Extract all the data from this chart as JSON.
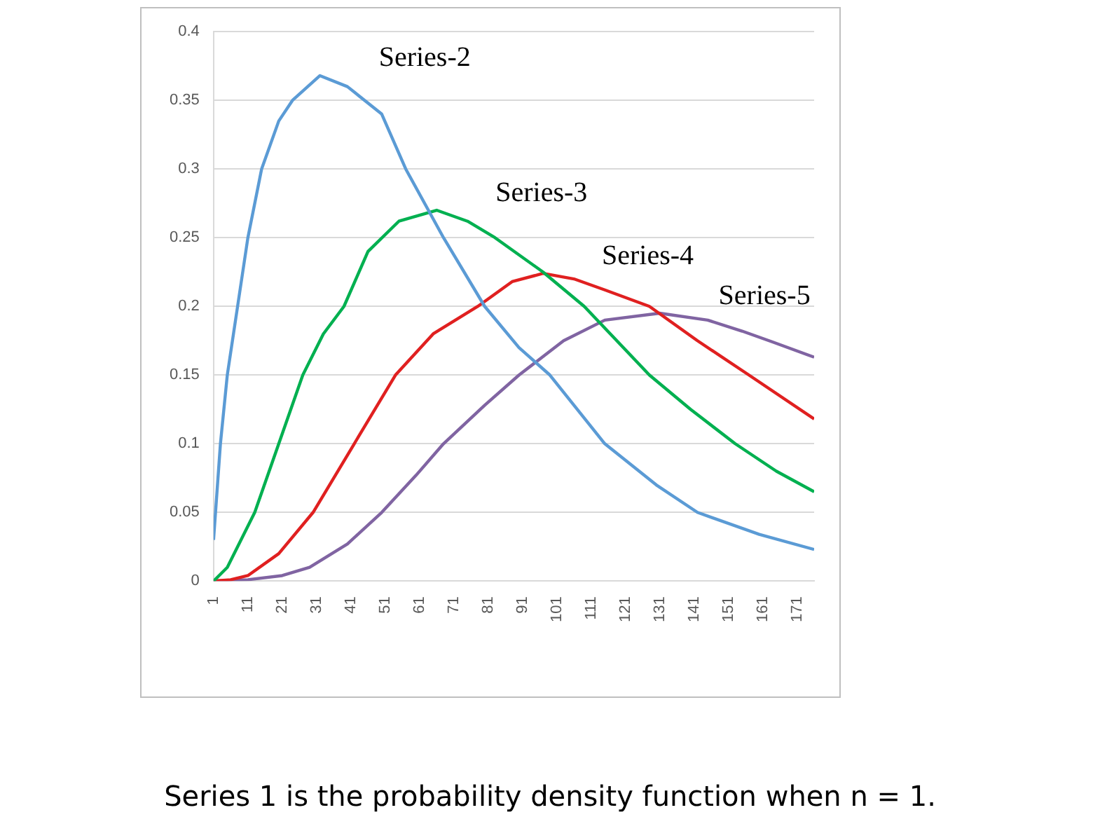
{
  "chart_data": {
    "type": "line",
    "annotations": [
      "Series 1 is the probability density function when n = 1."
    ],
    "xlim": [
      1,
      176
    ],
    "xticks": [
      1,
      11,
      21,
      31,
      41,
      51,
      61,
      71,
      81,
      91,
      101,
      111,
      121,
      131,
      141,
      151,
      161,
      171
    ],
    "ylim": [
      0,
      0.4
    ],
    "yticks": [
      0,
      0.05,
      0.1,
      0.15,
      0.2,
      0.25,
      0.3,
      0.35,
      0.4
    ],
    "grid": "y",
    "legend": false,
    "marker": "none",
    "line_style": "solid",
    "series": [
      {
        "name": "Series-2",
        "color": "#5b9bd5",
        "x": [
          1,
          3,
          5,
          8,
          11,
          15,
          20,
          24,
          32,
          40,
          50,
          57,
          68,
          80,
          90,
          99,
          115,
          130,
          142,
          160,
          176
        ],
        "values": [
          0.03,
          0.1,
          0.15,
          0.2,
          0.25,
          0.3,
          0.335,
          0.35,
          0.368,
          0.36,
          0.34,
          0.3,
          0.25,
          0.2,
          0.17,
          0.15,
          0.1,
          0.07,
          0.05,
          0.034,
          0.023
        ]
      },
      {
        "name": "Series-3",
        "color": "#00b050",
        "x": [
          1,
          5,
          9,
          13,
          20,
          27,
          33,
          39,
          46,
          55,
          66,
          75,
          83,
          97,
          109,
          128,
          140,
          153,
          165,
          176
        ],
        "values": [
          0,
          0.01,
          0.03,
          0.05,
          0.1,
          0.15,
          0.18,
          0.2,
          0.24,
          0.262,
          0.27,
          0.262,
          0.25,
          0.225,
          0.2,
          0.15,
          0.125,
          0.1,
          0.08,
          0.065
        ]
      },
      {
        "name": "Series-4",
        "color": "#e02020",
        "x": [
          1,
          6,
          11,
          20,
          30,
          42,
          54,
          65,
          78,
          88,
          97,
          106,
          115,
          128,
          142,
          157,
          176
        ],
        "values": [
          0,
          0.001,
          0.004,
          0.02,
          0.05,
          0.1,
          0.15,
          0.18,
          0.2,
          0.218,
          0.224,
          0.22,
          0.212,
          0.2,
          0.175,
          0.15,
          0.118
        ]
      },
      {
        "name": "Series-5",
        "color": "#8064a2",
        "x": [
          1,
          11,
          21,
          29,
          40,
          50,
          60,
          68,
          80,
          90,
          103,
          115,
          131,
          145,
          155,
          164,
          176
        ],
        "values": [
          0,
          0.001,
          0.004,
          0.01,
          0.027,
          0.05,
          0.077,
          0.1,
          0.128,
          0.15,
          0.175,
          0.19,
          0.195,
          0.19,
          0.182,
          0.174,
          0.163
        ]
      }
    ]
  }
}
